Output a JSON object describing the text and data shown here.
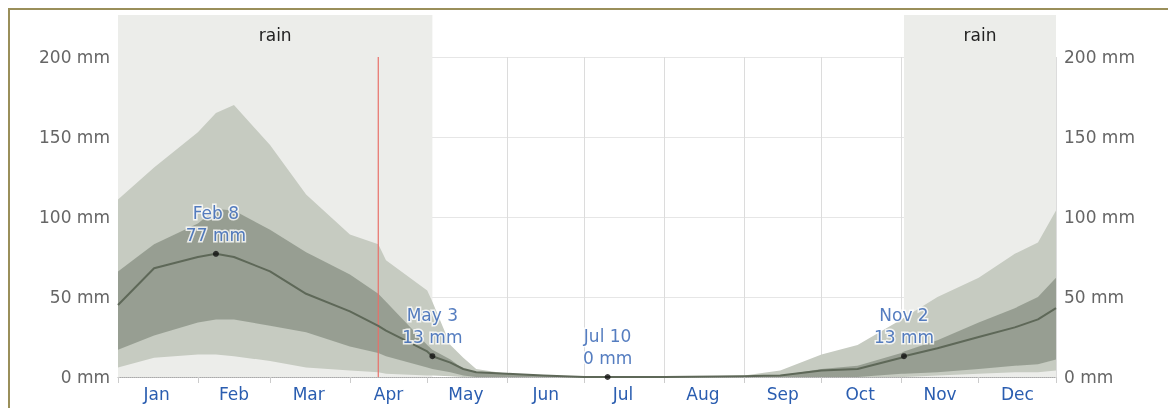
{
  "chart_data": {
    "type": "line",
    "x": [
      "--01-01",
      "--01-15",
      "--02-01",
      "--02-08",
      "--02-15",
      "--03-01",
      "--03-15",
      "--04-01",
      "--04-12",
      "--04-15",
      "--05-01",
      "--05-03",
      "--05-10",
      "--05-15",
      "--05-20",
      "--06-01",
      "--06-15",
      "--07-01",
      "--07-10",
      "--08-01",
      "--09-01",
      "--09-15",
      "--10-01",
      "--10-15",
      "--11-01",
      "--11-02",
      "--11-15",
      "--12-01",
      "--12-15",
      "--12-24",
      "--12-31"
    ],
    "series": [
      {
        "color": "#5e6858",
        "values": [
          45,
          68,
          75,
          77,
          75,
          66,
          52,
          41,
          32,
          29,
          16,
          13,
          9,
          5,
          3,
          2,
          1,
          0,
          0,
          0,
          0.5,
          1,
          4,
          5,
          12,
          13,
          18,
          25,
          31,
          36,
          43
        ],
        "lower": [
          17,
          26,
          34,
          36,
          36,
          32,
          28,
          19,
          15,
          13,
          6,
          5,
          3,
          1,
          0,
          0,
          0,
          0,
          0,
          0,
          0,
          0,
          0,
          0,
          2,
          2,
          3,
          5,
          7,
          8,
          11
        ],
        "upper": [
          66,
          83,
          96,
          105,
          104,
          92,
          78,
          64,
          52,
          47,
          20,
          17,
          11,
          5,
          3,
          2,
          1,
          0,
          0,
          0,
          0,
          1,
          5,
          7,
          15,
          16,
          23,
          34,
          43,
          50,
          62
        ]
      },
      {
        "color": "#c6cbc1",
        "values": [
          null,
          null,
          null,
          null,
          null,
          null,
          null,
          null,
          null,
          null,
          null,
          null,
          null,
          null,
          null,
          null,
          null,
          null,
          null,
          null,
          null,
          null,
          null,
          null,
          null,
          null,
          null,
          null,
          null,
          null,
          null
        ],
        "lower": [
          6,
          12,
          14,
          14,
          13,
          10,
          6,
          4,
          3,
          2,
          1,
          1,
          0.5,
          0,
          0,
          0,
          0,
          0,
          0,
          0,
          0,
          0,
          0,
          0,
          0,
          0,
          1,
          2,
          3,
          3,
          4
        ],
        "upper": [
          111,
          131,
          153,
          165,
          170,
          145,
          114,
          89,
          83,
          73,
          54,
          47,
          20,
          12,
          5,
          2,
          1,
          0,
          0,
          0,
          1,
          4,
          14,
          20,
          36,
          37,
          50,
          62,
          77,
          84,
          104
        ]
      }
    ],
    "xlim": [
      "--01-01",
      "--12-31"
    ],
    "xticks": [
      {
        "value": "--01-01",
        "label": null
      },
      {
        "value": "--01-16",
        "label": "Jan"
      },
      {
        "value": "--02-01",
        "label": null
      },
      {
        "value": "--02-15",
        "label": "Feb"
      },
      {
        "value": "--03-01",
        "label": null
      },
      {
        "value": "--03-16",
        "label": "Mar"
      },
      {
        "value": "--04-01",
        "label": null
      },
      {
        "value": "--04-16",
        "label": "Apr"
      },
      {
        "value": "--05-01",
        "label": null
      },
      {
        "value": "--05-16",
        "label": "May"
      },
      {
        "value": "--06-01",
        "label": null
      },
      {
        "value": "--06-16",
        "label": "Jun"
      },
      {
        "value": "--07-01",
        "label": null
      },
      {
        "value": "--07-16",
        "label": "Jul"
      },
      {
        "value": "--08-01",
        "label": null
      },
      {
        "value": "--08-16",
        "label": "Aug"
      },
      {
        "value": "--09-01",
        "label": null
      },
      {
        "value": "--09-16",
        "label": "Sep"
      },
      {
        "value": "--10-01",
        "label": null
      },
      {
        "value": "--10-16",
        "label": "Oct"
      },
      {
        "value": "--11-01",
        "label": null
      },
      {
        "value": "--11-16",
        "label": "Nov"
      },
      {
        "value": "--12-01",
        "label": null
      },
      {
        "value": "--12-16",
        "label": "Dec"
      },
      {
        "value": "--12-31",
        "label": null
      }
    ],
    "ylim": [
      0,
      200
    ],
    "yticks": [
      {
        "value": 0,
        "label": "0 mm"
      },
      {
        "value": 50,
        "label": "50 mm"
      },
      {
        "value": 100,
        "label": "100 mm"
      },
      {
        "value": 150,
        "label": "150 mm"
      },
      {
        "value": 200,
        "label": "200 mm"
      }
    ],
    "y2lim": [
      0,
      200
    ],
    "y2ticks": [
      {
        "value": 0,
        "label": "0 mm"
      },
      {
        "value": 50,
        "label": "50 mm"
      },
      {
        "value": 100,
        "label": "100 mm"
      },
      {
        "value": 150,
        "label": "150 mm"
      },
      {
        "value": 200,
        "label": "200 mm"
      }
    ],
    "bands": [
      {
        "axis": "x",
        "from": "--01-01",
        "to": "--05-03",
        "label": "rain",
        "color": "#ecedea"
      },
      {
        "axis": "x",
        "from": "--11-02",
        "to": "--12-31",
        "label": "rain",
        "color": "#ecedea"
      }
    ],
    "ref_lines": [
      {
        "axis": "x",
        "value": "--04-12",
        "label": null,
        "color": "#e8706a"
      }
    ],
    "annotations": [
      {
        "text": "Feb 8\n77 mm",
        "x": "--02-08",
        "y": 77
      },
      {
        "text": "May 3\n13 mm",
        "x": "--05-03",
        "y": 13
      },
      {
        "text": "Jul 10\n0 mm",
        "x": "--07-10",
        "y": 0
      },
      {
        "text": "Nov 2\n13 mm",
        "x": "--11-02",
        "y": 13
      }
    ],
    "grid": true,
    "marker": "none",
    "line_style": "solid"
  }
}
